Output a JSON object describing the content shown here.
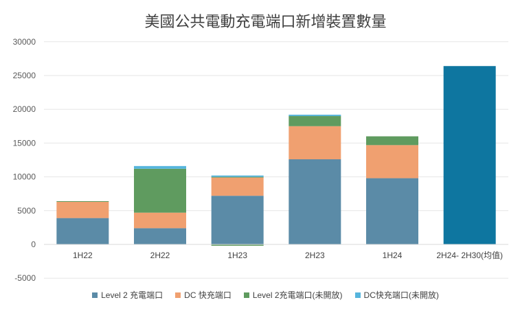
{
  "chart_data": {
    "type": "bar",
    "stacked": true,
    "title": "美國公共電動充電端口新增裝置數量",
    "categories": [
      "1H22",
      "2H22",
      "1H23",
      "2H23",
      "1H24",
      "2H24- 2H30(均值)"
    ],
    "ylim": [
      -5000,
      30000
    ],
    "yticks": [
      -5000,
      0,
      5000,
      10000,
      15000,
      20000,
      25000,
      30000
    ],
    "grid": true,
    "legend_position": "bottom",
    "series": [
      {
        "name": "Level 2 充電端口",
        "color": "#5b8ba7",
        "values": [
          3900,
          2400,
          7200,
          12600,
          9800,
          0
        ]
      },
      {
        "name": "DC 快充端口",
        "color": "#f0a070",
        "values": [
          2400,
          2300,
          2700,
          4900,
          4900,
          0
        ]
      },
      {
        "name": "Level 2充電端口(未開放)",
        "color": "#5f9b5f",
        "values": [
          100,
          6500,
          100,
          1500,
          1300,
          0
        ]
      },
      {
        "name": "DC快充端口(未開放)",
        "color": "#56b5dd",
        "values": [
          0,
          400,
          200,
          200,
          0,
          0
        ]
      }
    ],
    "projection": {
      "name": "2H24- 2H30(均值)",
      "value": 26400,
      "color": "#0e76a0"
    },
    "negative_offset": {
      "category": "1H23",
      "value": -200
    }
  }
}
